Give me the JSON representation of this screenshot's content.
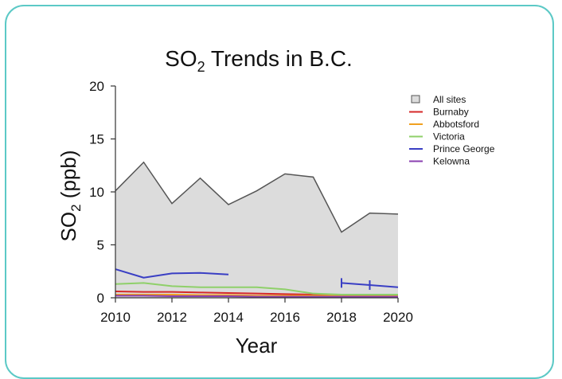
{
  "chart_data": {
    "type": "line",
    "title_main": "SO",
    "title_sub": "2",
    "title_rest": " Trends in B.C.",
    "xlabel": "Year",
    "ylabel_main": "SO",
    "ylabel_sub": "2",
    "ylabel_rest": " (ppb)",
    "xlim": [
      2010,
      2020
    ],
    "ylim": [
      0,
      20
    ],
    "xticks": [
      "2010",
      "2012",
      "2014",
      "2016",
      "2018",
      "2020"
    ],
    "yticks": [
      "0",
      "5",
      "10",
      "15",
      "20"
    ],
    "legend_position": "right",
    "colors": {
      "all_sites_fill": "#dcdcdc",
      "all_sites_line": "#555555"
    },
    "series": [
      {
        "name": "All sites",
        "kind": "area",
        "color": "#555555",
        "fill": "#dcdcdc",
        "points": [
          [
            2010,
            10.1
          ],
          [
            2011,
            12.8
          ],
          [
            2012,
            8.9
          ],
          [
            2013,
            11.3
          ],
          [
            2014,
            8.8
          ],
          [
            2015,
            10.1
          ],
          [
            2016,
            11.7
          ],
          [
            2017,
            11.4
          ],
          [
            2018,
            6.2
          ],
          [
            2019,
            8.0
          ],
          [
            2020,
            7.9
          ]
        ]
      },
      {
        "name": "Burnaby",
        "kind": "line",
        "color": "#d62828",
        "points": [
          [
            2010,
            0.6
          ],
          [
            2011,
            0.55
          ],
          [
            2012,
            0.55
          ],
          [
            2013,
            0.5
          ],
          [
            2014,
            0.45
          ],
          [
            2015,
            0.4
          ],
          [
            2016,
            0.35
          ],
          [
            2017,
            0.3
          ],
          [
            2018,
            0.3
          ],
          [
            2019,
            0.25
          ],
          [
            2020,
            0.25
          ]
        ]
      },
      {
        "name": "Abbotsford",
        "kind": "line",
        "color": "#f0a020",
        "points": [
          [
            2010,
            0.3
          ],
          [
            2011,
            0.3
          ],
          [
            2012,
            0.3
          ],
          [
            2013,
            0.25
          ],
          [
            2014,
            0.25
          ],
          [
            2015,
            0.2
          ],
          [
            2016,
            0.2
          ],
          [
            2017,
            0.2
          ],
          [
            2018,
            0.2
          ],
          [
            2019,
            0.2
          ],
          [
            2020,
            0.2
          ]
        ]
      },
      {
        "name": "Victoria",
        "kind": "line",
        "color": "#8fd06a",
        "points": [
          [
            2010,
            1.3
          ],
          [
            2011,
            1.4
          ],
          [
            2012,
            1.1
          ],
          [
            2013,
            1.0
          ],
          [
            2014,
            1.0
          ],
          [
            2015,
            1.0
          ],
          [
            2016,
            0.8
          ],
          [
            2017,
            0.4
          ],
          [
            2018,
            0.3
          ],
          [
            2019,
            0.3
          ],
          [
            2020,
            0.3
          ]
        ]
      },
      {
        "name": "Prince George",
        "kind": "line",
        "color": "#3a3fc4",
        "segments": [
          [
            [
              2010,
              2.7
            ],
            [
              2011,
              1.9
            ],
            [
              2012,
              2.3
            ],
            [
              2013,
              2.35
            ],
            [
              2014,
              2.2
            ]
          ],
          [
            [
              2018,
              1.4
            ],
            [
              2019,
              1.2
            ],
            [
              2020,
              1.0
            ]
          ]
        ],
        "markers": [
          [
            2018,
            1.4
          ],
          [
            2019,
            1.2
          ]
        ]
      },
      {
        "name": "Kelowna",
        "kind": "line",
        "color": "#8a3fb0",
        "points": [
          [
            2010,
            0.2
          ],
          [
            2011,
            0.2
          ],
          [
            2012,
            0.15
          ],
          [
            2013,
            0.15
          ],
          [
            2014,
            0.15
          ],
          [
            2015,
            0.1
          ],
          [
            2016,
            0.1
          ],
          [
            2017,
            0.1
          ],
          [
            2018,
            0.1
          ],
          [
            2019,
            0.1
          ],
          [
            2020,
            0.1
          ]
        ]
      }
    ]
  }
}
